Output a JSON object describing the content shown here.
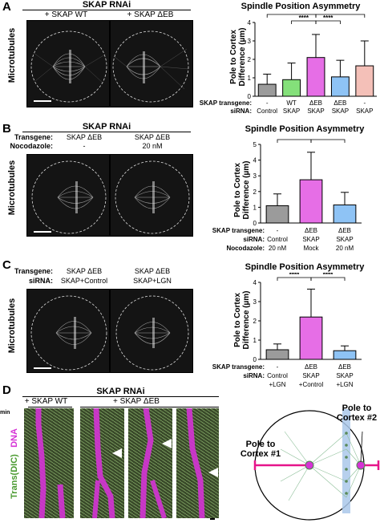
{
  "panelA": {
    "letter": "A",
    "title": "SKAP RNAi",
    "conditions": [
      "+ SKAP WT",
      "+ SKAP ΔEB"
    ],
    "ylabel_side": "Microtubules",
    "chart_title": "Spindle Position Asymmetry",
    "row_labels": [
      "SKAP transgene:",
      "siRNA:"
    ],
    "columns": [
      {
        "transgene": "-",
        "sirna": "Control"
      },
      {
        "transgene": "WT",
        "sirna": "SKAP"
      },
      {
        "transgene": "ΔEB",
        "sirna": "SKAP"
      },
      {
        "transgene": "ΔEB",
        "sirna": "SKAP"
      },
      {
        "transgene": "-",
        "sirna": "SKAP"
      }
    ],
    "sig": [
      "****",
      "****",
      "****",
      "*"
    ]
  },
  "panelB": {
    "letter": "B",
    "title": "SKAP RNAi",
    "row_labels": [
      "Transgene:",
      "Nocodazole:"
    ],
    "conditions": [
      {
        "transgene": "SKAP ΔEB",
        "noco": "-"
      },
      {
        "transgene": "SKAP ΔEB",
        "noco": "20 nM"
      }
    ],
    "ylabel_side": "Microtubules",
    "chart_title": "Spindle Position Asymmetry",
    "table_labels": [
      "SKAP transgene:",
      "siRNA:",
      "Nocodazole:"
    ],
    "columns": [
      {
        "transgene": "-",
        "sirna": "Control",
        "noco": "20 nM"
      },
      {
        "transgene": "ΔEB",
        "sirna": "SKAP",
        "noco": "Mock"
      },
      {
        "transgene": "ΔEB",
        "sirna": "SKAP",
        "noco": "20 nM"
      }
    ],
    "sig": [
      "****",
      "****"
    ]
  },
  "panelC": {
    "letter": "C",
    "row_labels": [
      "Transgene:",
      "siRNA:"
    ],
    "conditions": [
      {
        "transgene": "SKAP ΔEB",
        "sirna": "SKAP+Control"
      },
      {
        "transgene": "SKAP ΔEB",
        "sirna": "SKAP+LGN"
      }
    ],
    "ylabel_side": "Microtubules",
    "chart_title": "Spindle Position Asymmetry",
    "table_labels": [
      "SKAP transgene:",
      "siRNA:"
    ],
    "columns": [
      {
        "transgene": "-",
        "sirna": "Control",
        "sirna2": "+LGN"
      },
      {
        "transgene": "ΔEB",
        "sirna": "SKAP",
        "sirna2": "+Control"
      },
      {
        "transgene": "ΔEB",
        "sirna": "SKAP",
        "sirna2": "+LGN"
      }
    ],
    "sig": [
      "****",
      "****"
    ]
  },
  "panelD": {
    "letter": "D",
    "title": "SKAP RNAi",
    "conditions": [
      "+ SKAP WT",
      "+ SKAP ΔEB"
    ],
    "min_label": "min",
    "time_ticks": [
      "0",
      "10",
      "20",
      "30",
      "40",
      "50",
      "60",
      "70"
    ],
    "ylabel_dna": "DNA",
    "ylabel_trans": "Trans(DIC)",
    "diagram_labels": [
      "Pole to\nCortex #1",
      "Pole to\nCortex #2"
    ]
  },
  "chart_data": [
    {
      "type": "bar",
      "title": "Spindle Position Asymmetry",
      "ylabel": "Pole to Cortex Difference (μm)",
      "ylim": [
        0,
        4
      ],
      "yticks": [
        "0",
        "1",
        "2",
        "3",
        "4"
      ],
      "categories": [
        "Control",
        "WT SKAP",
        "ΔEB SKAP",
        "ΔEB SKAP",
        "- SKAP"
      ],
      "values": [
        0.65,
        0.9,
        2.1,
        1.05,
        1.65
      ],
      "errors": [
        0.55,
        0.9,
        1.25,
        0.9,
        1.35
      ],
      "colors": [
        "#9b9b9b",
        "#84e07a",
        "#e66ee6",
        "#8ec3f5",
        "#f4c0b8"
      ]
    },
    {
      "type": "bar",
      "title": "Spindle Position Asymmetry",
      "ylabel": "Pole to Cortex Difference (μm)",
      "ylim": [
        0,
        5
      ],
      "yticks": [
        "0",
        "1",
        "2",
        "3",
        "4",
        "5"
      ],
      "categories": [
        "Control 20 nM",
        "ΔEB SKAP Mock",
        "ΔEB SKAP 20 nM"
      ],
      "values": [
        1.1,
        2.75,
        1.15
      ],
      "errors": [
        0.75,
        1.75,
        0.8
      ],
      "colors": [
        "#9b9b9b",
        "#e66ee6",
        "#8ec3f5"
      ]
    },
    {
      "type": "bar",
      "title": "Spindle Position Asymmetry",
      "ylabel": "Pole to Cortex Difference (μm)",
      "ylim": [
        0,
        4
      ],
      "yticks": [
        "0",
        "1",
        "2",
        "3",
        "4"
      ],
      "categories": [
        "Control+LGN",
        "ΔEB SKAP+Control",
        "ΔEB SKAP+LGN"
      ],
      "values": [
        0.5,
        2.2,
        0.45
      ],
      "errors": [
        0.3,
        1.45,
        0.25
      ],
      "colors": [
        "#9b9b9b",
        "#e66ee6",
        "#8ec3f5"
      ]
    }
  ]
}
